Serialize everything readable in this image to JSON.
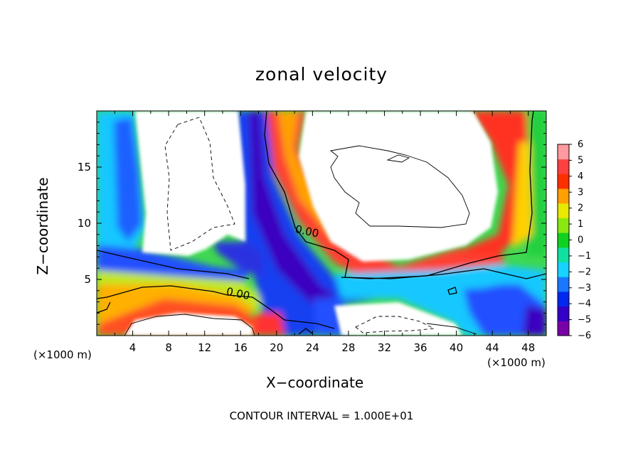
{
  "chart_data": {
    "type": "heatmap",
    "title": "zonal velocity",
    "xlabel": "X−coordinate",
    "ylabel": "Z−coordinate",
    "x_unit_label_left": "(×1000 m)",
    "x_unit_label_right": "(×1000 m)",
    "footer": "CONTOUR INTERVAL = 1.000E+01",
    "xlim": [
      0,
      50
    ],
    "ylim": [
      0,
      20
    ],
    "x_ticks": [
      4,
      8,
      12,
      16,
      20,
      24,
      28,
      32,
      36,
      40,
      44,
      48
    ],
    "y_ticks": [
      5,
      10,
      15
    ],
    "colorbar": {
      "min": -6,
      "max": 6,
      "tick_labels": [
        "6",
        "5",
        "4",
        "3",
        "2",
        "1",
        "0",
        "−1",
        "−2",
        "−3",
        "−4",
        "−5",
        "−6"
      ],
      "colors": [
        "#7a00a8",
        "#3400c8",
        "#0028f0",
        "#1a78ff",
        "#18d2ff",
        "#10e0a0",
        "#10d020",
        "#88e810",
        "#e8e800",
        "#ffa000",
        "#ff3000",
        "#ff4040",
        "#ff9aa0"
      ]
    },
    "contour_labels": [
      "0.00",
      "0.00"
    ],
    "values_outside_colorbar_range": "white"
  }
}
